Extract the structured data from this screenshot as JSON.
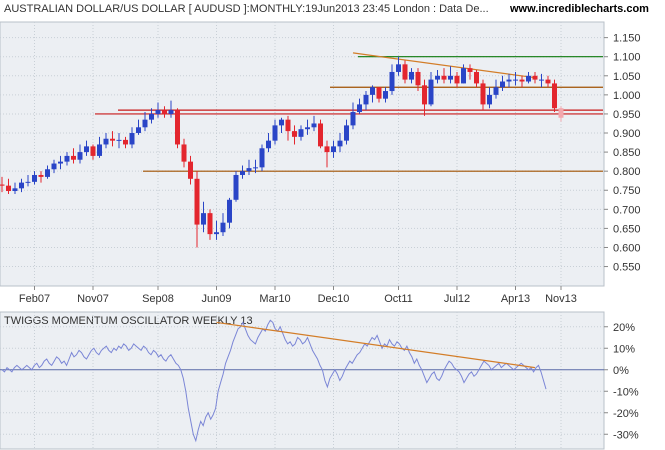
{
  "header": {
    "title": "AUSTRALIAN DOLLAR/US DOLLAR [ AUDUSD ]:MONTHLY:19Jun2013 23:45 London : Data De...",
    "brand": "www.incrediblecharts.com"
  },
  "colors": {
    "up": "#2a45c7",
    "down": "#e3262e",
    "last": "#f4a7ad",
    "upper_line": "#0c7a0c",
    "support_line": "#c81818",
    "mid_line": "#a05000",
    "trend_line": "#d37d28",
    "osc_line": "#7b86d6",
    "grid": "#c8cfd6",
    "panel_bg": "#eceff3"
  },
  "chart_data": [
    {
      "type": "candlestick",
      "title": "AUSTRALIAN DOLLAR/US DOLLAR [ AUDUSD ]:MONTHLY:19Jun2013 23:45 London : Data De...",
      "x_tick_labels": [
        "Feb07",
        "Nov07",
        "Sep08",
        "Jun09",
        "Mar10",
        "Dec10",
        "Oct11",
        "Jul12",
        "Apr13",
        "Nov13"
      ],
      "y_tick_labels": [
        "0.550",
        "0.600",
        "0.650",
        "0.700",
        "0.750",
        "0.800",
        "0.850",
        "0.900",
        "0.950",
        "1.000",
        "1.050",
        "1.100",
        "1.150"
      ],
      "ylim": [
        0.52,
        1.17
      ],
      "grid": true,
      "start": "2006-09",
      "open": [
        0.765,
        0.762,
        0.748,
        0.755,
        0.77,
        0.772,
        0.79,
        0.785,
        0.805,
        0.82,
        0.825,
        0.84,
        0.83,
        0.85,
        0.865,
        0.84,
        0.87,
        0.885,
        0.88,
        0.882,
        0.87,
        0.9,
        0.915,
        0.935,
        0.95,
        0.96,
        0.95,
        0.96,
        0.87,
        0.825,
        0.78,
        0.66,
        0.69,
        0.635,
        0.64,
        0.665,
        0.725,
        0.79,
        0.8,
        0.808,
        0.81,
        0.86,
        0.88,
        0.92,
        0.935,
        0.905,
        0.89,
        0.91,
        0.915,
        0.925,
        0.865,
        0.85,
        0.865,
        0.88,
        0.92,
        0.955,
        0.975,
        1.0,
        1.02,
        0.99,
        1.01,
        1.06,
        1.08,
        1.04,
        1.06,
        1.025,
        0.975,
        1.04,
        1.05,
        1.04,
        1.05,
        1.03,
        1.07,
        1.06,
        1.03,
        0.975,
        1.0,
        1.02,
        1.035,
        1.04,
        1.04,
        1.035,
        1.05,
        1.04,
        1.04,
        1.03,
        0.965
      ],
      "close": [
        0.762,
        0.748,
        0.755,
        0.77,
        0.772,
        0.79,
        0.785,
        0.805,
        0.82,
        0.825,
        0.84,
        0.83,
        0.85,
        0.865,
        0.84,
        0.87,
        0.885,
        0.88,
        0.882,
        0.87,
        0.9,
        0.915,
        0.935,
        0.95,
        0.96,
        0.95,
        0.96,
        0.87,
        0.825,
        0.78,
        0.66,
        0.69,
        0.635,
        0.64,
        0.665,
        0.725,
        0.79,
        0.8,
        0.808,
        0.81,
        0.86,
        0.88,
        0.92,
        0.935,
        0.905,
        0.89,
        0.91,
        0.915,
        0.925,
        0.865,
        0.85,
        0.865,
        0.88,
        0.92,
        0.955,
        0.975,
        1.0,
        1.02,
        0.99,
        1.01,
        1.06,
        1.08,
        1.04,
        1.06,
        1.025,
        0.975,
        1.04,
        1.05,
        1.04,
        1.05,
        1.03,
        1.07,
        1.06,
        1.03,
        0.975,
        1.0,
        1.02,
        1.035,
        1.04,
        1.04,
        1.035,
        1.05,
        1.04,
        1.04,
        1.03,
        0.965,
        0.94
      ],
      "high": [
        0.785,
        0.78,
        0.77,
        0.78,
        0.79,
        0.8,
        0.8,
        0.815,
        0.83,
        0.84,
        0.85,
        0.86,
        0.87,
        0.88,
        0.87,
        0.89,
        0.9,
        0.905,
        0.9,
        0.89,
        0.915,
        0.935,
        0.955,
        0.965,
        0.98,
        0.97,
        0.985,
        0.965,
        0.885,
        0.84,
        0.8,
        0.72,
        0.7,
        0.67,
        0.69,
        0.73,
        0.8,
        0.815,
        0.83,
        0.83,
        0.87,
        0.9,
        0.935,
        0.94,
        0.945,
        0.92,
        0.92,
        0.935,
        0.945,
        0.935,
        0.88,
        0.88,
        0.9,
        0.935,
        0.98,
        0.99,
        1.01,
        1.025,
        1.02,
        1.02,
        1.08,
        1.1,
        1.09,
        1.07,
        1.07,
        1.04,
        1.06,
        1.065,
        1.07,
        1.075,
        1.06,
        1.08,
        1.08,
        1.065,
        1.04,
        1.02,
        1.04,
        1.05,
        1.055,
        1.06,
        1.05,
        1.06,
        1.06,
        1.055,
        1.05,
        1.04,
        0.97
      ],
      "low": [
        0.745,
        0.74,
        0.74,
        0.745,
        0.76,
        0.765,
        0.77,
        0.78,
        0.795,
        0.805,
        0.815,
        0.82,
        0.82,
        0.84,
        0.83,
        0.835,
        0.86,
        0.865,
        0.86,
        0.86,
        0.86,
        0.895,
        0.905,
        0.925,
        0.94,
        0.94,
        0.94,
        0.86,
        0.81,
        0.765,
        0.6,
        0.64,
        0.62,
        0.62,
        0.63,
        0.65,
        0.72,
        0.78,
        0.79,
        0.795,
        0.8,
        0.85,
        0.87,
        0.9,
        0.88,
        0.87,
        0.88,
        0.895,
        0.905,
        0.86,
        0.81,
        0.835,
        0.85,
        0.87,
        0.91,
        0.95,
        0.96,
        0.98,
        0.98,
        0.98,
        1.0,
        1.05,
        1.03,
        1.03,
        1.01,
        0.945,
        0.97,
        1.03,
        1.03,
        1.03,
        1.02,
        1.03,
        1.04,
        1.02,
        0.96,
        0.965,
        0.99,
        1.01,
        1.02,
        1.025,
        1.02,
        1.03,
        1.03,
        1.02,
        1.02,
        0.955,
        0.93
      ],
      "horizontal_lines": [
        1.1,
        1.02,
        0.96,
        0.95,
        0.8
      ],
      "trend_line": [
        [
          "2011-03",
          1.11
        ],
        [
          "2013-07",
          1.045
        ]
      ]
    },
    {
      "type": "line",
      "title": "TWIGGS MOMENTUM OSCILLATOR WEEKLY 13",
      "y_tick_labels": [
        "20%",
        "10%",
        "0%",
        "-10%",
        "-20%",
        "-30%"
      ],
      "ylim": [
        -35,
        25
      ],
      "grid": true,
      "start": "2006-09",
      "values": [
        0,
        -1,
        1,
        0,
        -1,
        1,
        2,
        1,
        0,
        1,
        2,
        1,
        0,
        2,
        3,
        1,
        2,
        4,
        5,
        3,
        2,
        4,
        6,
        5,
        3,
        4,
        2,
        5,
        8,
        6,
        7,
        9,
        8,
        6,
        5,
        7,
        9,
        10,
        8,
        7,
        9,
        10,
        11,
        9,
        8,
        10,
        9,
        11,
        10,
        12,
        11,
        9,
        10,
        12,
        11,
        10,
        9,
        11,
        10,
        8,
        7,
        9,
        8,
        6,
        7,
        5,
        4,
        6,
        7,
        5,
        3,
        2,
        0,
        -4,
        -10,
        -18,
        -24,
        -30,
        -33,
        -28,
        -24,
        -26,
        -22,
        -20,
        -23,
        -21,
        -18,
        -10,
        -6,
        -2,
        3,
        6,
        9,
        13,
        16,
        19,
        20,
        22,
        19,
        16,
        14,
        13,
        12,
        15,
        17,
        19,
        18,
        21,
        23,
        22,
        19,
        18,
        20,
        17,
        14,
        12,
        13,
        11,
        12,
        15,
        14,
        12,
        13,
        15,
        12,
        9,
        7,
        5,
        2,
        0,
        -5,
        -8,
        -4,
        -2,
        0,
        -2,
        -5,
        -3,
        0,
        2,
        4,
        3,
        5,
        7,
        8,
        10,
        12,
        11,
        13,
        15,
        14,
        16,
        13,
        10,
        12,
        11,
        14,
        12,
        11,
        13,
        12,
        10,
        9,
        11,
        8,
        6,
        3,
        5,
        2,
        0,
        -3,
        -6,
        -4,
        -2,
        -1,
        -4,
        -5,
        -3,
        0,
        2,
        4,
        3,
        1,
        0,
        -1,
        -3,
        -6,
        -4,
        -2,
        -1,
        -3,
        -2,
        0,
        2,
        4,
        3,
        2,
        0,
        1,
        2,
        3,
        1,
        2,
        3,
        2,
        1,
        0,
        1,
        2,
        3,
        2,
        1,
        0,
        1,
        -1,
        1,
        2,
        -1,
        -5,
        -9
      ],
      "trend_line": [
        [
          "2009-06",
          22
        ],
        [
          "2013-07",
          1
        ]
      ]
    }
  ]
}
